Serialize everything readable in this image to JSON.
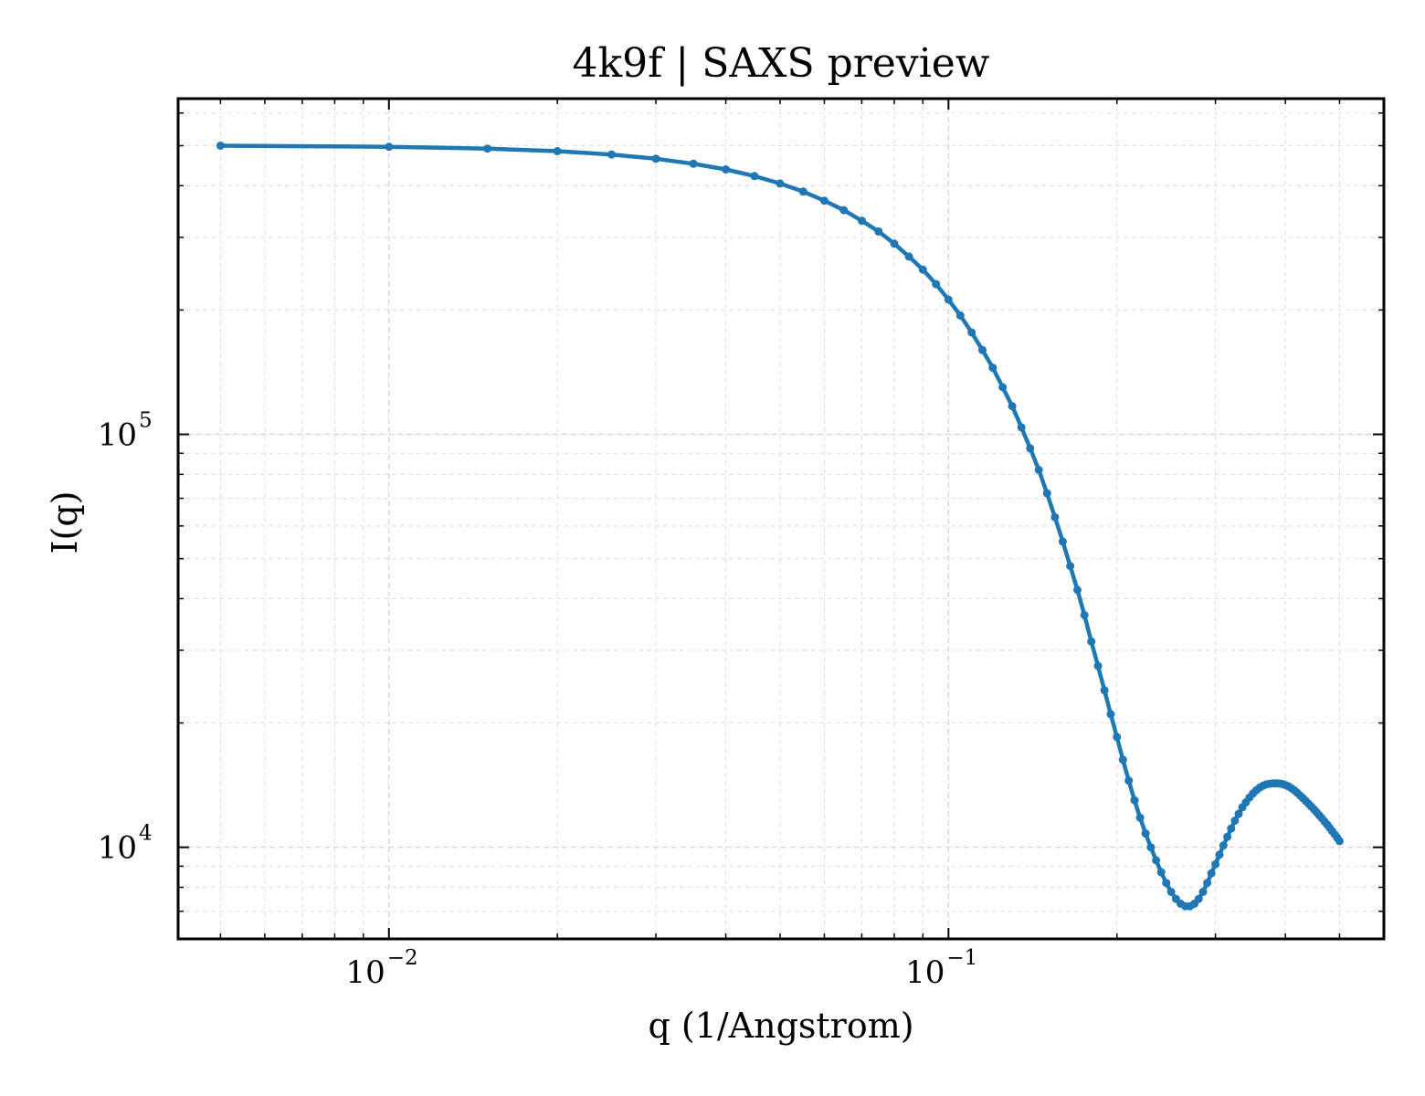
{
  "chart_data": {
    "type": "line",
    "title": "4k9f | SAXS preview",
    "xlabel": "q (1/Angstrom)",
    "ylabel": "I(q)",
    "xscale": "log",
    "yscale": "log",
    "xlim": [
      0.0042,
      0.6
    ],
    "ylim": [
      6000,
      650000
    ],
    "x_major_ticks": [
      {
        "value": 0.01,
        "base": "10",
        "exponent": "−2"
      },
      {
        "value": 0.1,
        "base": "10",
        "exponent": "−1"
      }
    ],
    "y_major_ticks": [
      {
        "value": 10000,
        "base": "10",
        "exponent": "4"
      },
      {
        "value": 100000,
        "base": "10",
        "exponent": "5"
      }
    ],
    "grid": true,
    "line_color": "#1f77b4",
    "series": [
      {
        "x": [
          0.005,
          0.01,
          0.015,
          0.02,
          0.025,
          0.03,
          0.035,
          0.04,
          0.045,
          0.05,
          0.055,
          0.06,
          0.065,
          0.07,
          0.075,
          0.08,
          0.085,
          0.09,
          0.095,
          0.1,
          0.105,
          0.11,
          0.115,
          0.12,
          0.125,
          0.13,
          0.135,
          0.14,
          0.145,
          0.15,
          0.155,
          0.16,
          0.165,
          0.17,
          0.175,
          0.18,
          0.185,
          0.19,
          0.195,
          0.2,
          0.205,
          0.21,
          0.215,
          0.22,
          0.225,
          0.23,
          0.235,
          0.24,
          0.245,
          0.25,
          0.255,
          0.26,
          0.265,
          0.27,
          0.275,
          0.28,
          0.285,
          0.29,
          0.295,
          0.3,
          0.305,
          0.31,
          0.315,
          0.32,
          0.325,
          0.33,
          0.335,
          0.34,
          0.345,
          0.35,
          0.355,
          0.36,
          0.365,
          0.37,
          0.375,
          0.38,
          0.385,
          0.39,
          0.395,
          0.4,
          0.405,
          0.41,
          0.415,
          0.42,
          0.425,
          0.43,
          0.435,
          0.44,
          0.445,
          0.45,
          0.455,
          0.46,
          0.465,
          0.47,
          0.475,
          0.48,
          0.485,
          0.49,
          0.495,
          0.5
        ],
        "y": [
          500000,
          497000,
          492000,
          485000,
          476000,
          465000,
          452000,
          438000,
          422000,
          405000,
          387000,
          368000,
          349000,
          329000,
          310000,
          289500,
          269500,
          250500,
          231000,
          212000,
          194000,
          176500,
          160000,
          145000,
          130000,
          117000,
          104000,
          92500,
          82000,
          72000,
          63000,
          55000,
          48000,
          42000,
          36500,
          31500,
          27500,
          24000,
          21000,
          18500,
          16300,
          14500,
          13000,
          11800,
          10800,
          10000,
          9300,
          8700,
          8200,
          7800,
          7500,
          7300,
          7200,
          7200,
          7300,
          7500,
          7800,
          8200,
          8650,
          9100,
          9600,
          10100,
          10600,
          11100,
          11600,
          12050,
          12500,
          12850,
          13200,
          13500,
          13750,
          13950,
          14100,
          14200,
          14250,
          14280,
          14290,
          14270,
          14230,
          14150,
          14050,
          13900,
          13750,
          13550,
          13350,
          13150,
          12950,
          12750,
          12550,
          12350,
          12150,
          11950,
          11750,
          11550,
          11350,
          11150,
          10950,
          10750,
          10550,
          10350
        ]
      }
    ]
  }
}
